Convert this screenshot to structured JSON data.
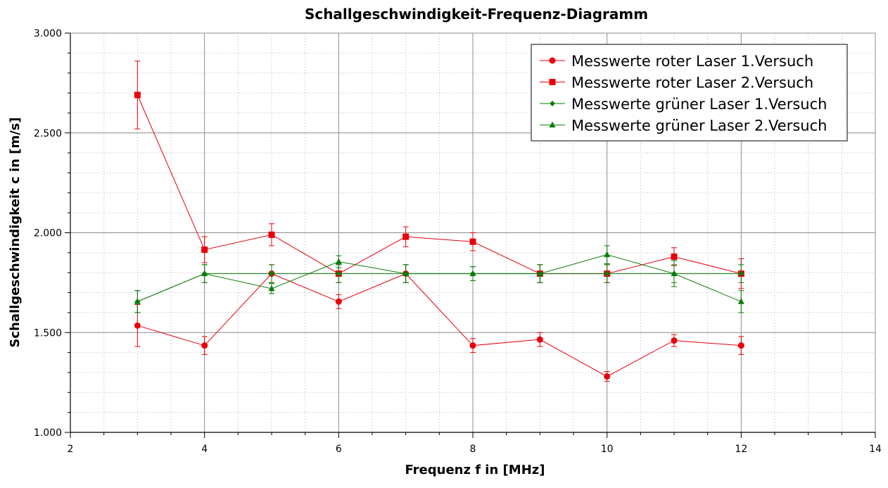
{
  "chart_data": {
    "type": "line",
    "title": "Schallgeschwindigkeit-Frequenz-Diagramm",
    "xlabel": "Frequenz f in [MHz]",
    "ylabel": "Schallgeschwindigkeit c in [m/s]",
    "xlim": [
      2,
      14
    ],
    "ylim": [
      1000,
      3000
    ],
    "x_ticks": [
      2,
      4,
      6,
      8,
      10,
      12,
      14
    ],
    "x_tick_labels": [
      "2",
      "4",
      "6",
      "8",
      "10",
      "12",
      "14"
    ],
    "y_ticks": [
      1000,
      1500,
      2000,
      2500,
      3000
    ],
    "y_tick_labels": [
      "1.000",
      "1.500",
      "2.000",
      "2.500",
      "3.000"
    ],
    "grid": true,
    "legend_position": "top-right",
    "series": [
      {
        "name": "Messwerte roter Laser 1.Versuch",
        "color": "#e8000b",
        "marker": "circle",
        "x": [
          3,
          4,
          5,
          6,
          7,
          8,
          9,
          10,
          11,
          12
        ],
        "y": [
          1535,
          1435,
          1795,
          1655,
          1795,
          1435,
          1465,
          1280,
          1460,
          1435
        ],
        "err": [
          105,
          45,
          45,
          35,
          45,
          35,
          35,
          25,
          30,
          45
        ]
      },
      {
        "name": "Messwerte roter Laser 2.Versuch",
        "color": "#e8000b",
        "marker": "square",
        "x": [
          3,
          4,
          5,
          6,
          7,
          8,
          9,
          10,
          11,
          12
        ],
        "y": [
          2690,
          1915,
          1990,
          1795,
          1980,
          1955,
          1795,
          1795,
          1880,
          1795
        ],
        "err": [
          170,
          65,
          55,
          45,
          50,
          45,
          45,
          45,
          45,
          75
        ]
      },
      {
        "name": "Messwerte grüner Laser 1.Versuch",
        "color": "#0a7d0a",
        "marker": "diamond",
        "x": [
          3,
          4,
          5,
          6,
          7,
          8,
          9,
          10,
          11,
          12
        ],
        "y": [
          1655,
          1795,
          1795,
          1795,
          1795,
          1795,
          1795,
          1795,
          1795,
          1795
        ],
        "err": [
          55,
          45,
          45,
          45,
          45,
          35,
          45,
          45,
          45,
          45
        ]
      },
      {
        "name": "Messwerte grüner Laser 2.Versuch",
        "color": "#0a7d0a",
        "marker": "triangle",
        "x": [
          3,
          4,
          5,
          6,
          7,
          8,
          9,
          10,
          11,
          12
        ],
        "y": [
          1655,
          1795,
          1720,
          1855,
          1795,
          1795,
          1795,
          1890,
          1795,
          1655
        ],
        "err": [
          55,
          45,
          25,
          30,
          45,
          35,
          45,
          45,
          65,
          55
        ]
      }
    ]
  }
}
